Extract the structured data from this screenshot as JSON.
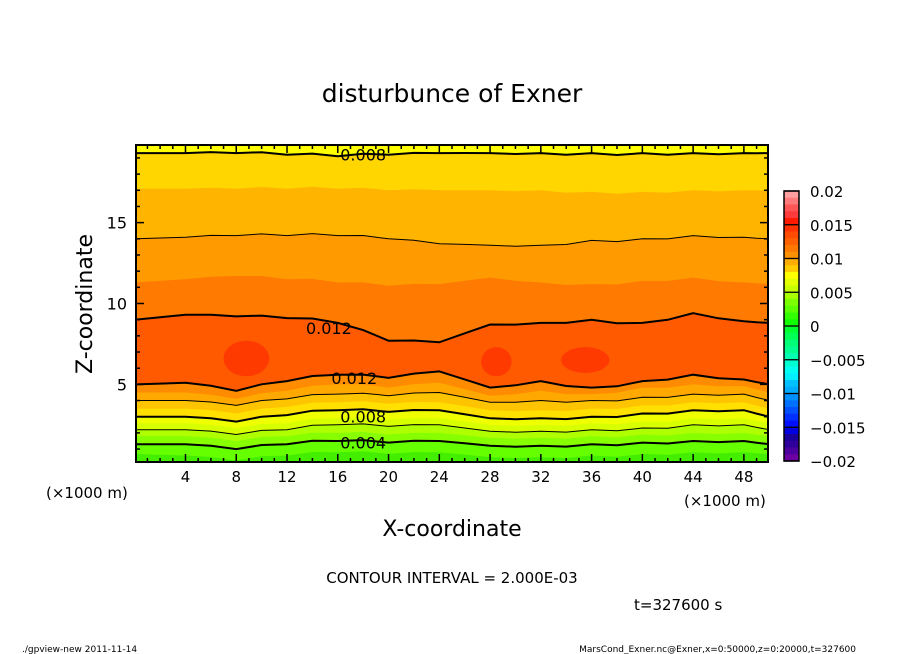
{
  "chart_data": {
    "type": "contour",
    "title": "disturbunce of Exner",
    "xlabel": "X-coordinate",
    "ylabel": "Z-coordinate",
    "x_unit_left": "(×1000 m)",
    "x_unit_right": "(×1000 m)",
    "xlim": [
      0.1,
      49.9
    ],
    "ylim": [
      0.2,
      19.8
    ],
    "x_ticks": [
      4,
      8,
      12,
      16,
      20,
      24,
      28,
      32,
      36,
      40,
      44,
      48
    ],
    "y_ticks": [
      5,
      10,
      15
    ],
    "contour_interval_text": "CONTOUR INTERVAL = 2.000E-03",
    "time_text": "t=327600 s",
    "sample_x": [
      0,
      4,
      8,
      12,
      16,
      20,
      24,
      28,
      32,
      36,
      40,
      44,
      48,
      50
    ],
    "base_color": "#44ee00",
    "boundaries": [
      {
        "level": 0.003,
        "line": false,
        "fill": "#66ff00",
        "z": [
          0.7,
          0.6,
          0.3,
          0.6,
          0.8,
          0.7,
          0.8,
          0.5,
          0.5,
          0.6,
          0.7,
          0.8,
          0.8,
          0.7
        ]
      },
      {
        "level": 0.004,
        "line": "thick",
        "fill": "#88ff00",
        "z": [
          1.3,
          1.3,
          1.0,
          1.3,
          1.5,
          1.4,
          1.5,
          1.2,
          1.2,
          1.3,
          1.4,
          1.5,
          1.5,
          1.3
        ]
      },
      {
        "level": 0.005,
        "line": false,
        "fill": "#b0ff00",
        "z": [
          1.8,
          1.8,
          1.5,
          1.8,
          2.0,
          1.9,
          2.0,
          1.7,
          1.7,
          1.8,
          1.9,
          2.0,
          2.0,
          1.8
        ]
      },
      {
        "level": 0.006,
        "line": "thin",
        "fill": "#d8ff00",
        "z": [
          2.2,
          2.2,
          1.9,
          2.2,
          2.5,
          2.4,
          2.5,
          2.1,
          2.1,
          2.2,
          2.3,
          2.5,
          2.5,
          2.2
        ]
      },
      {
        "level": 0.007,
        "line": false,
        "fill": "#f0ff00",
        "z": [
          2.6,
          2.6,
          2.3,
          2.6,
          2.9,
          2.8,
          2.9,
          2.5,
          2.5,
          2.6,
          2.7,
          2.9,
          2.9,
          2.6
        ]
      },
      {
        "level": 0.008,
        "line": "thick",
        "fill": "#ffe000",
        "z": [
          3.0,
          3.0,
          2.7,
          3.1,
          3.4,
          3.3,
          3.4,
          2.9,
          2.9,
          3.0,
          3.2,
          3.4,
          3.4,
          3.0
        ]
      },
      {
        "level": 0.009,
        "line": false,
        "fill": "#ffc400",
        "z": [
          3.5,
          3.5,
          3.2,
          3.6,
          3.9,
          3.8,
          3.9,
          3.4,
          3.4,
          3.5,
          3.7,
          3.9,
          3.9,
          3.5
        ]
      },
      {
        "level": 0.01,
        "line": "thin",
        "fill": "#ffa800",
        "z": [
          4.0,
          4.0,
          3.7,
          4.1,
          4.4,
          4.3,
          4.5,
          3.9,
          4.0,
          4.0,
          4.2,
          4.4,
          4.4,
          4.0
        ]
      },
      {
        "level": 0.011,
        "line": false,
        "fill": "#ff8c00",
        "z": [
          4.5,
          4.5,
          4.1,
          4.6,
          5.0,
          4.8,
          5.1,
          4.3,
          4.6,
          4.4,
          4.8,
          5.0,
          4.9,
          4.5
        ]
      },
      {
        "level": 0.012,
        "line": "thick",
        "fill": "#ff5a00",
        "z": [
          5.0,
          5.1,
          4.6,
          5.2,
          5.6,
          5.4,
          5.8,
          4.8,
          5.2,
          4.8,
          5.2,
          5.6,
          5.3,
          5.0
        ]
      },
      {
        "level": 0.012,
        "line": "thick",
        "fill": "#ff7a00",
        "z": [
          9.0,
          9.3,
          9.2,
          9.1,
          8.8,
          7.7,
          7.6,
          8.7,
          8.8,
          9.0,
          8.8,
          9.4,
          8.9,
          8.8
        ]
      },
      {
        "level": 0.011,
        "line": false,
        "fill": "#ff9a00",
        "z": [
          11.3,
          11.5,
          11.7,
          11.5,
          11.3,
          11.1,
          11.2,
          11.6,
          11.3,
          11.2,
          11.4,
          11.6,
          11.3,
          11.2
        ]
      },
      {
        "level": 0.01,
        "line": "thin",
        "fill": "#ffb400",
        "z": [
          14.0,
          14.1,
          14.2,
          14.2,
          14.2,
          14.0,
          13.7,
          13.6,
          13.6,
          13.9,
          14.0,
          14.2,
          14.1,
          14.0
        ]
      },
      {
        "level": 0.009,
        "line": false,
        "fill": "#ffd600",
        "z": [
          17.1,
          17.1,
          17.1,
          17.1,
          17.1,
          17.0,
          17.0,
          17.0,
          17.0,
          16.9,
          16.9,
          17.0,
          17.0,
          17.0
        ]
      },
      {
        "level": 0.008,
        "line": "thick",
        "fill": "#ffff00",
        "z": [
          19.3,
          19.3,
          19.3,
          19.2,
          19.1,
          19.2,
          19.3,
          19.3,
          19.3,
          19.3,
          19.3,
          19.3,
          19.3,
          19.3
        ]
      }
    ],
    "maxima": [
      {
        "x": 8.8,
        "z": 6.6,
        "rx": 1.8,
        "rz": 1.1,
        "fill": "#ff3a00"
      },
      {
        "x": 28.5,
        "z": 6.4,
        "rx": 1.2,
        "rz": 0.9,
        "fill": "#ff3a00"
      },
      {
        "x": 35.5,
        "z": 6.5,
        "rx": 1.9,
        "rz": 0.8,
        "fill": "#ff3a00"
      }
    ],
    "contour_labels": [
      {
        "text": "0.008",
        "x": 18.0,
        "z": 19.2
      },
      {
        "text": "0.012",
        "x": 15.3,
        "z": 8.5
      },
      {
        "text": "0.012",
        "x": 17.3,
        "z": 5.4
      },
      {
        "text": "0.008",
        "x": 18.0,
        "z": 3.0
      },
      {
        "text": "0.004",
        "x": 18.0,
        "z": 1.4
      }
    ],
    "colorbar": {
      "range": [
        -0.02,
        0.02
      ],
      "tick_labels": [
        "0.02",
        "0.015",
        "0.01",
        "0.005",
        "0",
        "−0.005",
        "−0.01",
        "−0.015",
        "−0.02"
      ],
      "colors_top_to_bottom": [
        "#ff9e9e",
        "#ff7a7a",
        "#ff5555",
        "#ff3a3a",
        "#ff1a00",
        "#ff3300",
        "#ff4c00",
        "#ff6000",
        "#ff7800",
        "#ff9000",
        "#ffae00",
        "#ffcc00",
        "#ffff00",
        "#e4ff00",
        "#c8ff00",
        "#a8ff00",
        "#7cff00",
        "#5cff00",
        "#33ff00",
        "#10ff00",
        "#00ff30",
        "#00ff55",
        "#00ff77",
        "#00ff90",
        "#00ffb0",
        "#00ffd0",
        "#00fff0",
        "#00f0ff",
        "#00c0ff",
        "#00aaff",
        "#0090ff",
        "#0070ff",
        "#0050ff",
        "#0030ff",
        "#0010ff",
        "#0000e0",
        "#1a009a",
        "#30009a",
        "#4c00a0",
        "#6c00a0"
      ]
    }
  },
  "footer": {
    "left": "./gpview-new  2011-11-14",
    "right": "MarsCond_Exner.nc@Exner,x=0:50000,z=0:20000,t=327600"
  }
}
